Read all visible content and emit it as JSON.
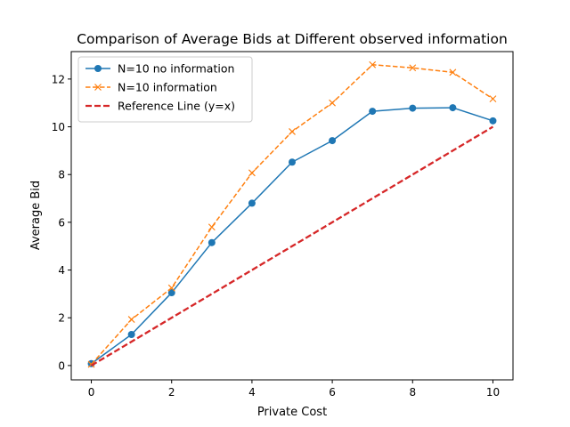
{
  "chart_data": {
    "type": "line",
    "title": "Comparison of Average Bids at Different observed information",
    "xlabel": "Private Cost",
    "ylabel": "Average Bid",
    "xlim": [
      -0.5,
      10.5
    ],
    "ylim": [
      -0.6,
      13.15
    ],
    "xticks": [
      0,
      2,
      4,
      6,
      8,
      10
    ],
    "yticks": [
      0,
      2,
      4,
      6,
      8,
      10,
      12
    ],
    "grid": false,
    "legend_position": "top-left",
    "series": [
      {
        "name": "N=10 no information",
        "color": "#1f77b4",
        "style": "solid",
        "marker": "circle",
        "x": [
          0,
          1,
          2,
          3,
          4,
          5,
          6,
          7,
          8,
          9,
          10
        ],
        "y": [
          0.08,
          1.3,
          3.05,
          5.15,
          6.8,
          8.52,
          9.42,
          10.65,
          10.78,
          10.8,
          10.25
        ]
      },
      {
        "name": "N=10 information",
        "color": "#ff7f0e",
        "style": "dashed",
        "marker": "x",
        "x": [
          0,
          1,
          2,
          3,
          4,
          5,
          6,
          7,
          8,
          9,
          10
        ],
        "y": [
          0.05,
          1.93,
          3.25,
          5.8,
          8.07,
          9.8,
          11.0,
          12.6,
          12.47,
          12.28,
          11.17
        ]
      },
      {
        "name": "Reference Line (y=x)",
        "color": "#d62728",
        "style": "dashed",
        "marker": "none",
        "x": [
          0,
          10
        ],
        "y": [
          0,
          10
        ]
      }
    ]
  }
}
